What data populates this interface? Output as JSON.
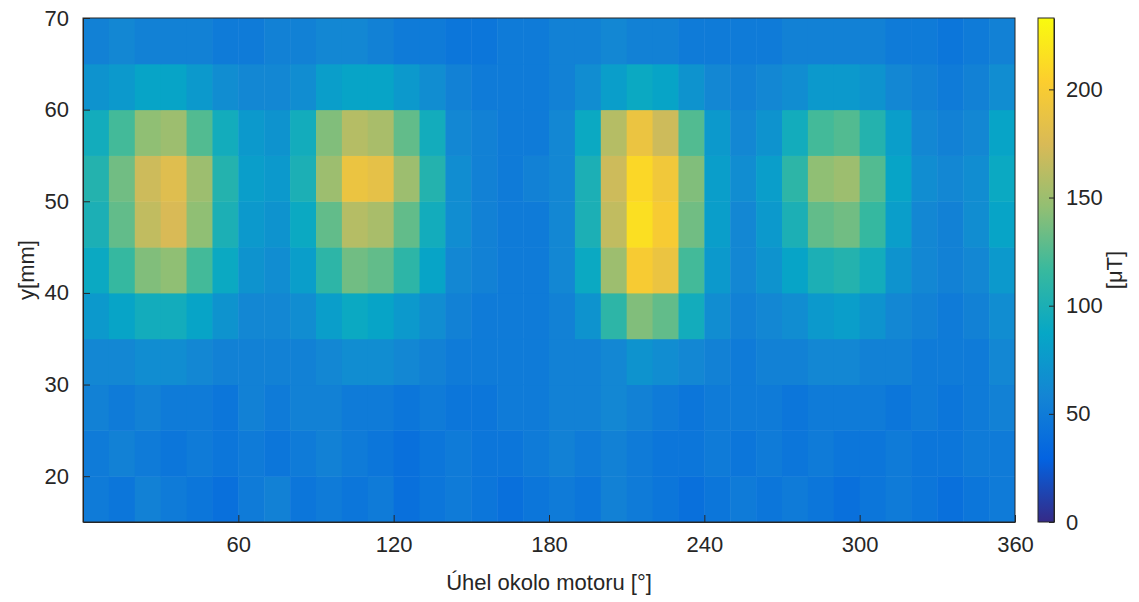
{
  "chart_data": {
    "type": "heatmap",
    "x_label": "Úhel okolo motoru [°]",
    "y_label": "y[mm]",
    "xlim": [
      0,
      360
    ],
    "xticks": [
      60,
      120,
      180,
      240,
      300,
      360
    ],
    "ylim": [
      15,
      70
    ],
    "yticks": [
      20,
      30,
      40,
      50,
      60,
      70
    ],
    "x": [
      5,
      15,
      25,
      35,
      45,
      55,
      65,
      75,
      85,
      95,
      105,
      115,
      125,
      135,
      145,
      155,
      165,
      175,
      185,
      195,
      205,
      215,
      225,
      235,
      245,
      255,
      265,
      275,
      285,
      295,
      305,
      315,
      325,
      335,
      345,
      355
    ],
    "y": [
      17.5,
      22.5,
      27.5,
      32.5,
      37.5,
      42.5,
      47.5,
      52.5,
      57.5,
      62.5,
      67.5
    ],
    "cells": [
      [
        50,
        45,
        55,
        50,
        45,
        40,
        50,
        55,
        45,
        50,
        45,
        50,
        40,
        45,
        50,
        45,
        40,
        45,
        50,
        45,
        55,
        50,
        45,
        40,
        45,
        50,
        45,
        50,
        45,
        40,
        45,
        50,
        45,
        40,
        45,
        50
      ],
      [
        50,
        55,
        50,
        45,
        50,
        45,
        50,
        45,
        50,
        55,
        50,
        45,
        40,
        45,
        50,
        45,
        45,
        50,
        55,
        50,
        55,
        50,
        45,
        45,
        50,
        45,
        50,
        45,
        50,
        45,
        45,
        50,
        45,
        45,
        50,
        50
      ],
      [
        55,
        50,
        55,
        50,
        50,
        45,
        55,
        50,
        55,
        55,
        50,
        50,
        45,
        50,
        45,
        45,
        50,
        50,
        55,
        55,
        60,
        55,
        50,
        45,
        50,
        50,
        50,
        45,
        50,
        50,
        50,
        45,
        50,
        45,
        50,
        55
      ],
      [
        60,
        60,
        65,
        65,
        60,
        55,
        55,
        55,
        55,
        60,
        65,
        65,
        60,
        55,
        50,
        50,
        50,
        50,
        55,
        55,
        60,
        70,
        65,
        60,
        55,
        50,
        55,
        55,
        60,
        60,
        55,
        55,
        50,
        50,
        50,
        60
      ],
      [
        75,
        85,
        95,
        95,
        85,
        70,
        60,
        60,
        65,
        80,
        90,
        85,
        75,
        65,
        55,
        50,
        50,
        50,
        55,
        70,
        110,
        140,
        130,
        95,
        65,
        55,
        60,
        65,
        75,
        80,
        70,
        60,
        55,
        50,
        55,
        65
      ],
      [
        90,
        115,
        140,
        145,
        120,
        90,
        70,
        65,
        80,
        110,
        135,
        130,
        110,
        85,
        60,
        55,
        50,
        50,
        60,
        90,
        150,
        200,
        190,
        120,
        75,
        60,
        70,
        85,
        100,
        105,
        95,
        70,
        60,
        55,
        60,
        75
      ],
      [
        100,
        130,
        165,
        175,
        145,
        100,
        75,
        70,
        90,
        130,
        160,
        155,
        130,
        95,
        65,
        55,
        50,
        50,
        60,
        100,
        165,
        215,
        200,
        135,
        80,
        60,
        75,
        100,
        130,
        135,
        115,
        80,
        60,
        55,
        65,
        85
      ],
      [
        105,
        135,
        170,
        180,
        150,
        105,
        80,
        75,
        100,
        150,
        190,
        185,
        150,
        105,
        65,
        55,
        50,
        55,
        60,
        100,
        170,
        210,
        195,
        140,
        80,
        65,
        80,
        110,
        145,
        150,
        125,
        85,
        65,
        60,
        65,
        90
      ],
      [
        95,
        120,
        145,
        150,
        125,
        95,
        75,
        70,
        95,
        140,
        160,
        155,
        130,
        95,
        60,
        55,
        50,
        50,
        60,
        90,
        160,
        190,
        170,
        125,
        75,
        60,
        70,
        95,
        120,
        125,
        105,
        80,
        60,
        55,
        60,
        85
      ],
      [
        70,
        75,
        85,
        85,
        75,
        65,
        60,
        60,
        65,
        80,
        85,
        85,
        75,
        65,
        55,
        50,
        50,
        50,
        55,
        65,
        80,
        90,
        85,
        70,
        60,
        55,
        60,
        65,
        75,
        75,
        70,
        60,
        55,
        50,
        55,
        65
      ],
      [
        55,
        60,
        55,
        55,
        55,
        50,
        50,
        55,
        55,
        60,
        60,
        55,
        50,
        50,
        45,
        45,
        50,
        50,
        55,
        55,
        60,
        55,
        55,
        50,
        50,
        50,
        50,
        55,
        55,
        55,
        55,
        50,
        50,
        45,
        50,
        55
      ]
    ],
    "colorbar": {
      "label": "[μT]",
      "range": [
        0,
        233
      ],
      "ticks": [
        0,
        50,
        100,
        150,
        200
      ]
    }
  }
}
